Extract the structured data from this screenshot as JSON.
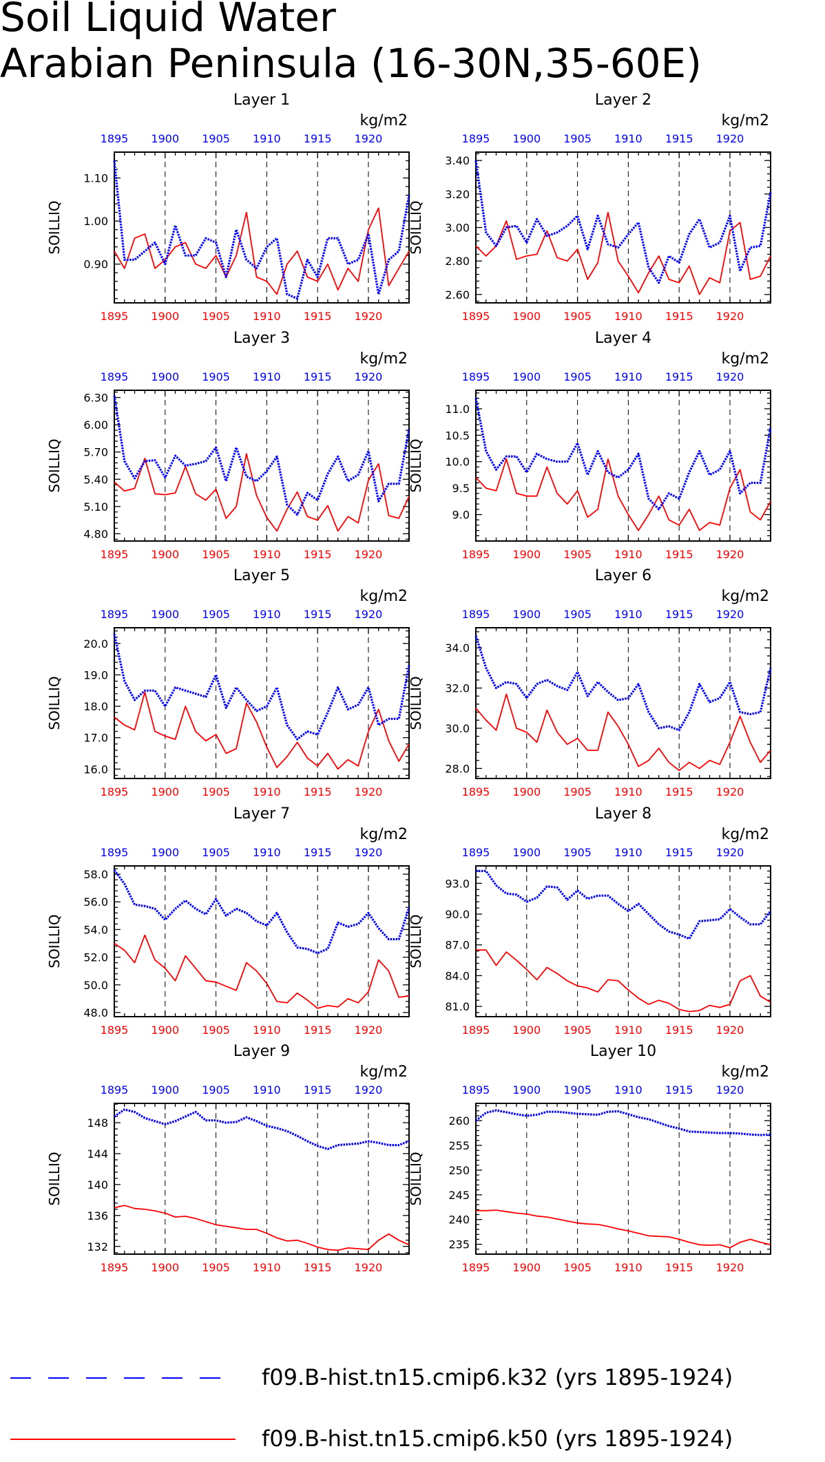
{
  "page": {
    "title_line1": "Soil Liquid Water",
    "title_line2": "Arabian Peninsula (16-30N,35-60E)"
  },
  "legend": [
    {
      "label": "f09.B-hist.tn15.cmip6.k32 (yrs 1895-1924)",
      "color": "#0000ff",
      "style": "dashed"
    },
    {
      "label": "f09.B-hist.tn15.cmip6.k50 (yrs 1895-1924)",
      "color": "#ff0000",
      "style": "solid"
    }
  ],
  "colors": {
    "series_a": "#0000ff",
    "series_b": "#ff0000",
    "axis": "#000000"
  },
  "chart_data": [
    {
      "type": "line",
      "title": "Layer 1",
      "ylabel": "SOILLIQ",
      "units": "kg/m2",
      "xlim": [
        1895,
        1924
      ],
      "ylim": [
        0.81,
        1.16
      ],
      "x_ticks": [
        1895,
        1900,
        1905,
        1910,
        1915,
        1920
      ],
      "y_ticks": [
        0.9,
        1.0,
        1.1
      ],
      "y_tick_labels": [
        "0.90",
        "1.00",
        "1.10"
      ],
      "series": [
        {
          "values": [
            1.14,
            0.91,
            0.91,
            0.93,
            0.95,
            0.9,
            0.99,
            0.92,
            0.92,
            0.96,
            0.95,
            0.87,
            0.98,
            0.91,
            0.89,
            0.94,
            0.96,
            0.83,
            0.82,
            0.91,
            0.87,
            0.96,
            0.96,
            0.9,
            0.91,
            0.97,
            0.83,
            0.91,
            0.93,
            1.06
          ]
        },
        {
          "values": [
            0.93,
            0.89,
            0.96,
            0.97,
            0.89,
            0.91,
            0.94,
            0.95,
            0.9,
            0.89,
            0.92,
            0.87,
            0.92,
            1.02,
            0.87,
            0.86,
            0.83,
            0.9,
            0.93,
            0.87,
            0.86,
            0.9,
            0.84,
            0.89,
            0.86,
            0.98,
            1.03,
            0.85,
            0.89,
            0.93
          ]
        }
      ]
    },
    {
      "type": "line",
      "title": "Layer 2",
      "ylabel": "SOILLIQ",
      "units": "kg/m2",
      "xlim": [
        1895,
        1924
      ],
      "ylim": [
        2.55,
        3.45
      ],
      "x_ticks": [
        1895,
        1900,
        1905,
        1910,
        1915,
        1920
      ],
      "y_ticks": [
        2.6,
        2.8,
        3.0,
        3.2,
        3.4
      ],
      "y_tick_labels": [
        "2.60",
        "2.80",
        "3.00",
        "3.20",
        "3.40"
      ],
      "series": [
        {
          "values": [
            3.4,
            2.97,
            2.89,
            3.0,
            3.01,
            2.91,
            3.05,
            2.95,
            2.97,
            3.01,
            3.07,
            2.87,
            3.07,
            2.9,
            2.88,
            2.96,
            3.03,
            2.76,
            2.67,
            2.83,
            2.79,
            2.96,
            3.05,
            2.88,
            2.91,
            3.07,
            2.74,
            2.88,
            2.89,
            3.21
          ]
        },
        {
          "values": [
            2.89,
            2.83,
            2.89,
            3.04,
            2.81,
            2.83,
            2.84,
            2.98,
            2.82,
            2.8,
            2.87,
            2.69,
            2.79,
            3.09,
            2.8,
            2.71,
            2.61,
            2.73,
            2.83,
            2.69,
            2.67,
            2.77,
            2.6,
            2.7,
            2.67,
            2.98,
            3.03,
            2.69,
            2.71,
            2.83
          ]
        }
      ]
    },
    {
      "type": "line",
      "title": "Layer 3",
      "ylabel": "SOILLIQ",
      "units": "kg/m2",
      "xlim": [
        1895,
        1924
      ],
      "ylim": [
        4.72,
        6.38
      ],
      "x_ticks": [
        1895,
        1900,
        1905,
        1910,
        1915,
        1920
      ],
      "y_ticks": [
        4.8,
        5.1,
        5.4,
        5.7,
        6.0,
        6.3
      ],
      "y_tick_labels": [
        "4.80",
        "5.10",
        "5.40",
        "5.70",
        "6.00",
        "6.30"
      ],
      "series": [
        {
          "values": [
            6.32,
            5.6,
            5.41,
            5.6,
            5.61,
            5.42,
            5.66,
            5.55,
            5.57,
            5.6,
            5.75,
            5.38,
            5.75,
            5.43,
            5.38,
            5.49,
            5.65,
            5.12,
            5.01,
            5.25,
            5.17,
            5.46,
            5.65,
            5.38,
            5.45,
            5.71,
            5.16,
            5.35,
            5.35,
            5.95
          ]
        },
        {
          "values": [
            5.37,
            5.27,
            5.3,
            5.63,
            5.24,
            5.23,
            5.25,
            5.54,
            5.24,
            5.17,
            5.29,
            4.97,
            5.1,
            5.68,
            5.22,
            4.98,
            4.83,
            5.07,
            5.26,
            4.99,
            4.95,
            5.11,
            4.83,
            4.99,
            4.92,
            5.39,
            5.57,
            5.0,
            4.97,
            5.21
          ]
        }
      ]
    },
    {
      "type": "line",
      "title": "Layer 4",
      "ylabel": "SOILLIQ",
      "units": "kg/m2",
      "xlim": [
        1895,
        1924
      ],
      "ylim": [
        8.5,
        11.35
      ],
      "x_ticks": [
        1895,
        1900,
        1905,
        1910,
        1915,
        1920
      ],
      "y_ticks": [
        9.0,
        9.5,
        10.0,
        10.5,
        11.0
      ],
      "y_tick_labels": [
        "9.0",
        "9.5",
        "10.0",
        "10.5",
        "11.0"
      ],
      "series": [
        {
          "values": [
            11.2,
            10.2,
            9.85,
            10.1,
            10.1,
            9.8,
            10.15,
            10.05,
            10.0,
            10.0,
            10.35,
            9.75,
            10.2,
            9.8,
            9.7,
            9.85,
            10.15,
            9.3,
            9.1,
            9.4,
            9.3,
            9.8,
            10.2,
            9.75,
            9.85,
            10.2,
            9.4,
            9.6,
            9.6,
            10.65
          ]
        },
        {
          "values": [
            9.7,
            9.5,
            9.45,
            10.05,
            9.4,
            9.35,
            9.35,
            9.9,
            9.4,
            9.2,
            9.45,
            8.95,
            9.1,
            10.05,
            9.35,
            9.0,
            8.7,
            9.0,
            9.35,
            8.9,
            8.8,
            9.1,
            8.7,
            8.85,
            8.8,
            9.5,
            9.85,
            9.05,
            8.9,
            9.25
          ]
        }
      ]
    },
    {
      "type": "line",
      "title": "Layer 5",
      "ylabel": "SOILLIQ",
      "units": "kg/m2",
      "xlim": [
        1895,
        1924
      ],
      "ylim": [
        15.7,
        20.5
      ],
      "x_ticks": [
        1895,
        1900,
        1905,
        1910,
        1915,
        1920
      ],
      "y_ticks": [
        16.0,
        17.0,
        18.0,
        19.0,
        20.0
      ],
      "y_tick_labels": [
        "16.0",
        "17.0",
        "18.0",
        "19.0",
        "20.0"
      ],
      "series": [
        {
          "values": [
            20.3,
            18.8,
            18.2,
            18.5,
            18.5,
            18.0,
            18.6,
            18.5,
            18.4,
            18.3,
            19.0,
            17.95,
            18.6,
            18.2,
            17.85,
            18.0,
            18.6,
            17.4,
            16.95,
            17.2,
            17.1,
            17.8,
            18.6,
            17.9,
            18.05,
            18.6,
            17.4,
            17.6,
            17.6,
            19.3
          ]
        },
        {
          "values": [
            17.65,
            17.4,
            17.25,
            18.45,
            17.2,
            17.05,
            16.95,
            18.0,
            17.2,
            16.9,
            17.1,
            16.5,
            16.65,
            18.1,
            17.5,
            16.7,
            16.05,
            16.4,
            16.85,
            16.35,
            16.1,
            16.5,
            16.0,
            16.3,
            16.1,
            17.2,
            17.9,
            16.9,
            16.25,
            16.8
          ]
        }
      ]
    },
    {
      "type": "line",
      "title": "Layer 6",
      "ylabel": "SOILLIQ",
      "units": "kg/m2",
      "xlim": [
        1895,
        1924
      ],
      "ylim": [
        27.5,
        35.0
      ],
      "x_ticks": [
        1895,
        1900,
        1905,
        1910,
        1915,
        1920
      ],
      "y_ticks": [
        28.0,
        30.0,
        32.0,
        34.0
      ],
      "y_tick_labels": [
        "28.0",
        "30.0",
        "32.0",
        "34.0"
      ],
      "series": [
        {
          "values": [
            34.6,
            33.0,
            32.0,
            32.3,
            32.2,
            31.5,
            32.2,
            32.4,
            32.1,
            31.9,
            32.8,
            31.6,
            32.3,
            31.8,
            31.4,
            31.5,
            32.2,
            30.8,
            30.0,
            30.1,
            29.9,
            30.8,
            32.2,
            31.3,
            31.5,
            32.3,
            30.8,
            30.7,
            30.8,
            33.0
          ]
        },
        {
          "values": [
            31.0,
            30.4,
            29.9,
            31.7,
            30.0,
            29.8,
            29.3,
            30.9,
            29.8,
            29.2,
            29.5,
            28.9,
            28.9,
            30.8,
            30.1,
            29.2,
            28.1,
            28.4,
            29.0,
            28.3,
            27.9,
            28.3,
            28.0,
            28.4,
            28.2,
            29.3,
            30.6,
            29.3,
            28.3,
            28.9
          ]
        }
      ]
    },
    {
      "type": "line",
      "title": "Layer 7",
      "ylabel": "SOILLIQ",
      "units": "kg/m2",
      "xlim": [
        1895,
        1924
      ],
      "ylim": [
        47.7,
        58.6
      ],
      "x_ticks": [
        1895,
        1900,
        1905,
        1910,
        1915,
        1920
      ],
      "y_ticks": [
        48.0,
        50.0,
        52.0,
        54.0,
        56.0,
        58.0
      ],
      "y_tick_labels": [
        "48.0",
        "50.0",
        "52.0",
        "54.0",
        "56.0",
        "58.0"
      ],
      "series": [
        {
          "values": [
            58.3,
            57.3,
            55.8,
            55.7,
            55.5,
            54.7,
            55.5,
            56.1,
            55.5,
            55.1,
            56.2,
            55.0,
            55.5,
            55.2,
            54.6,
            54.3,
            55.2,
            53.8,
            52.7,
            52.6,
            52.3,
            52.6,
            54.5,
            54.2,
            54.4,
            55.2,
            54.1,
            53.3,
            53.3,
            55.6
          ]
        },
        {
          "values": [
            53.0,
            52.5,
            51.6,
            53.6,
            51.8,
            51.2,
            50.3,
            52.1,
            51.2,
            50.3,
            50.2,
            49.9,
            49.6,
            51.6,
            51.0,
            50.1,
            48.8,
            48.7,
            49.4,
            48.9,
            48.3,
            48.5,
            48.4,
            49.0,
            48.7,
            49.5,
            51.8,
            51.0,
            49.1,
            49.2
          ]
        }
      ]
    },
    {
      "type": "line",
      "title": "Layer 8",
      "ylabel": "SOILLIQ",
      "units": "kg/m2",
      "xlim": [
        1895,
        1924
      ],
      "ylim": [
        80.0,
        94.7
      ],
      "x_ticks": [
        1895,
        1900,
        1905,
        1910,
        1915,
        1920
      ],
      "y_ticks": [
        81.0,
        84.0,
        87.0,
        90.0,
        93.0
      ],
      "y_tick_labels": [
        "81.0",
        "84.0",
        "87.0",
        "90.0",
        "93.0"
      ],
      "series": [
        {
          "values": [
            94.2,
            94.2,
            92.8,
            92.0,
            91.9,
            91.2,
            91.6,
            92.7,
            92.6,
            91.4,
            92.3,
            91.5,
            91.8,
            91.8,
            91.0,
            90.3,
            91.0,
            90.0,
            89.0,
            88.3,
            88.0,
            87.6,
            89.3,
            89.4,
            89.5,
            90.5,
            89.7,
            89.0,
            89.0,
            90.3
          ]
        },
        {
          "values": [
            86.5,
            86.5,
            85.0,
            86.3,
            85.5,
            84.6,
            83.6,
            84.8,
            84.2,
            83.5,
            83.0,
            82.8,
            82.4,
            83.6,
            83.5,
            82.6,
            81.8,
            81.2,
            81.6,
            81.3,
            80.7,
            80.5,
            80.6,
            81.1,
            80.9,
            81.2,
            83.5,
            84.0,
            82.0,
            81.4
          ]
        }
      ]
    },
    {
      "type": "line",
      "title": "Layer 9",
      "ylabel": "SOILLIQ",
      "units": "kg/m2",
      "xlim": [
        1895,
        1924
      ],
      "ylim": [
        131.0,
        150.5
      ],
      "x_ticks": [
        1895,
        1900,
        1905,
        1910,
        1915,
        1920
      ],
      "y_ticks": [
        132,
        136,
        140,
        144,
        148
      ],
      "y_tick_labels": [
        "132",
        "136",
        "140",
        "144",
        "148"
      ],
      "series": [
        {
          "values": [
            148.8,
            149.7,
            149.4,
            148.6,
            148.2,
            147.8,
            148.2,
            148.8,
            149.4,
            148.3,
            148.3,
            148.0,
            148.1,
            148.7,
            148.2,
            147.6,
            147.3,
            146.9,
            146.3,
            145.6,
            145.0,
            144.6,
            145.1,
            145.2,
            145.3,
            145.6,
            145.4,
            145.1,
            145.1,
            145.6
          ]
        },
        {
          "values": [
            137.0,
            137.3,
            136.9,
            136.8,
            136.6,
            136.3,
            135.8,
            135.9,
            135.6,
            135.2,
            134.8,
            134.6,
            134.4,
            134.2,
            134.2,
            133.7,
            133.1,
            132.7,
            132.8,
            132.4,
            131.9,
            131.6,
            131.5,
            131.8,
            131.7,
            131.6,
            132.8,
            133.6,
            132.8,
            132.2
          ]
        }
      ]
    },
    {
      "type": "line",
      "title": "Layer 10",
      "ylabel": "SOILLIQ",
      "units": "kg/m2",
      "xlim": [
        1895,
        1924
      ],
      "ylim": [
        233.0,
        263.5
      ],
      "x_ticks": [
        1895,
        1900,
        1905,
        1910,
        1915,
        1920
      ],
      "y_ticks": [
        235,
        240,
        245,
        250,
        255,
        260
      ],
      "y_tick_labels": [
        "235",
        "240",
        "245",
        "250",
        "255",
        "260"
      ],
      "series": [
        {
          "values": [
            260.0,
            261.6,
            262.1,
            261.7,
            261.3,
            261.0,
            261.2,
            261.8,
            261.8,
            261.6,
            261.4,
            261.3,
            261.2,
            261.8,
            261.9,
            261.3,
            260.7,
            260.3,
            259.6,
            258.9,
            258.4,
            257.8,
            257.7,
            257.6,
            257.5,
            257.5,
            257.4,
            257.2,
            257.1,
            257.2
          ]
        },
        {
          "values": [
            241.8,
            241.8,
            241.9,
            241.6,
            241.3,
            241.1,
            240.7,
            240.5,
            240.1,
            239.7,
            239.3,
            239.1,
            239.0,
            238.6,
            238.1,
            237.7,
            237.2,
            236.7,
            236.6,
            236.5,
            236.0,
            235.4,
            234.9,
            234.8,
            234.9,
            234.3,
            235.4,
            236.0,
            235.4,
            234.9
          ]
        }
      ]
    }
  ]
}
